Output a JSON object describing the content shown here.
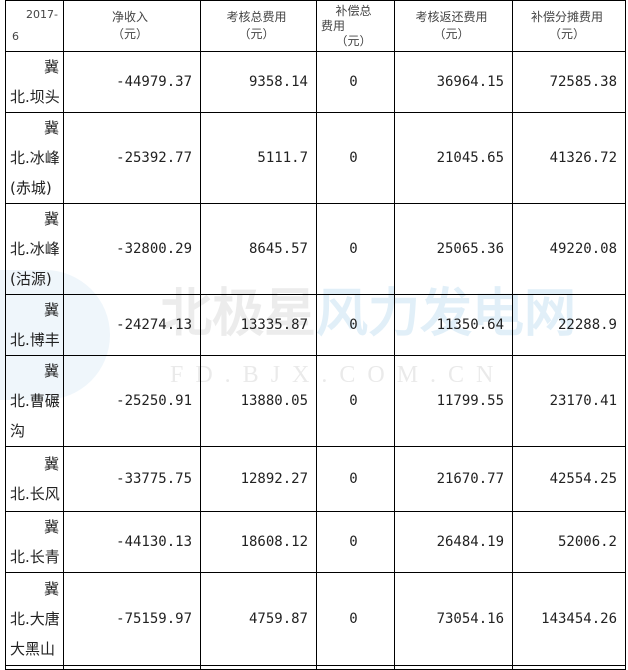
{
  "watermark": {
    "logo_dark": "北极星",
    "logo_blue": "风力发电网",
    "url": "FD.BJX.COM.CN"
  },
  "header": {
    "col0": [
      "2017-",
      "6"
    ],
    "col1": [
      "净收入",
      "（元）"
    ],
    "col2": [
      "考核总费用",
      "（元）"
    ],
    "col3": [
      "补偿总",
      "费用",
      "（元）"
    ],
    "col4": [
      "考核返还费用",
      "（元）"
    ],
    "col5": [
      "补偿分摊费用",
      "（元）"
    ]
  },
  "rows": [
    {
      "name": [
        "冀",
        "北.坝头"
      ],
      "net": "-44979.37",
      "assess": "9358.14",
      "comp": "0",
      "refund": "36964.15",
      "share": "72585.38"
    },
    {
      "name": [
        "冀",
        "北.冰峰",
        "(赤城)"
      ],
      "net": "-25392.77",
      "assess": "5111.7",
      "comp": "0",
      "refund": "21045.65",
      "share": "41326.72"
    },
    {
      "name": [
        "冀",
        "北.冰峰",
        "(沽源)"
      ],
      "net": "-32800.29",
      "assess": "8645.57",
      "comp": "0",
      "refund": "25065.36",
      "share": "49220.08"
    },
    {
      "name": [
        "冀",
        "北.博丰"
      ],
      "net": "-24274.13",
      "assess": "13335.87",
      "comp": "0",
      "refund": "11350.64",
      "share": "22288.9"
    },
    {
      "name": [
        "冀",
        "北.曹碾",
        "沟"
      ],
      "net": "-25250.91",
      "assess": "13880.05",
      "comp": "0",
      "refund": "11799.55",
      "share": "23170.41"
    },
    {
      "name": [
        "冀",
        "北.长风"
      ],
      "net": "-33775.75",
      "assess": "12892.27",
      "comp": "0",
      "refund": "21670.77",
      "share": "42554.25"
    },
    {
      "name": [
        "冀",
        "北.长青"
      ],
      "net": "-44130.13",
      "assess": "18608.12",
      "comp": "0",
      "refund": "26484.19",
      "share": "52006.2"
    },
    {
      "name": [
        "冀",
        "北.大唐",
        "大黑山"
      ],
      "net": "-75159.97",
      "assess": "4759.87",
      "comp": "0",
      "refund": "73054.16",
      "share": "143454.26"
    }
  ]
}
